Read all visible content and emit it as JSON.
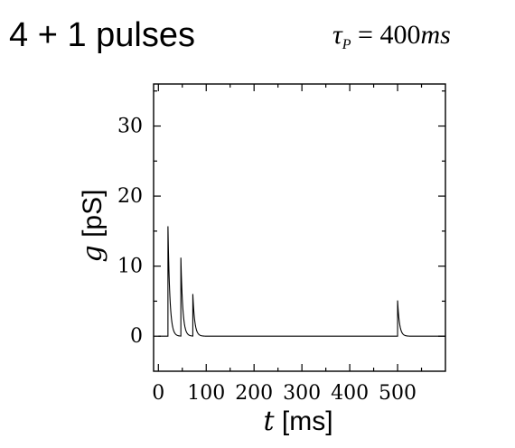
{
  "header": {
    "title": "4 + 1 pulses",
    "formula_symbol": "τ",
    "formula_sub": "P",
    "formula_rest": " = 400",
    "formula_unit": "ms"
  },
  "chart_data": {
    "type": "line",
    "xlabel_var": "t",
    "xlabel_unit": " [ms]",
    "ylabel_var": "g",
    "ylabel_unit": " [pS]",
    "xlim": [
      -10,
      600
    ],
    "ylim": [
      -5,
      36
    ],
    "xticks": [
      0,
      100,
      200,
      300,
      400,
      500
    ],
    "yticks": [
      0,
      10,
      20,
      30
    ],
    "grid": false,
    "series": [
      {
        "pulses": [
          {
            "t": 20,
            "peak": 15.7
          },
          {
            "t": 47,
            "peak": 11.2
          },
          {
            "t": 72,
            "peak": 6.0
          },
          {
            "t": 500,
            "peak": 5.1
          }
        ],
        "decay_ms": 4
      }
    ]
  }
}
